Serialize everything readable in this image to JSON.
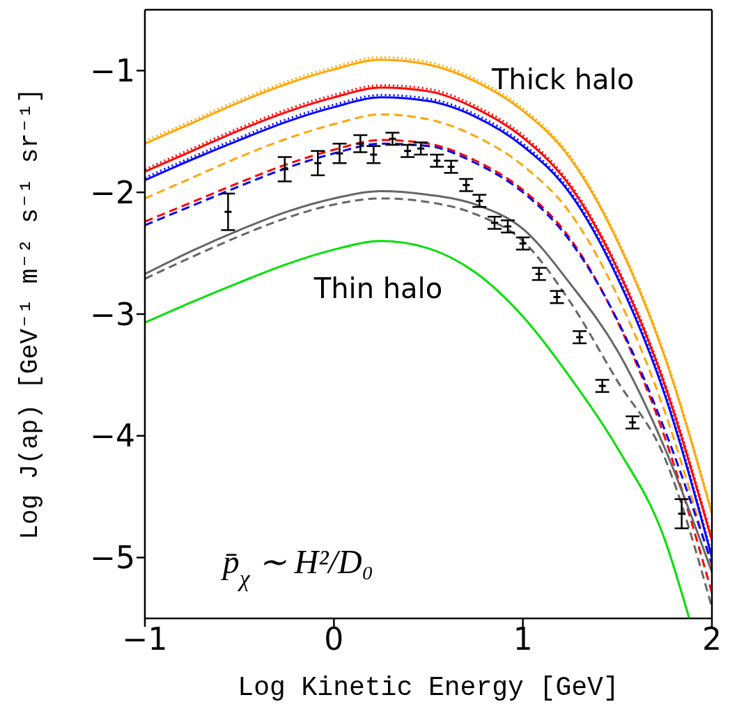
{
  "chart_data": {
    "type": "line",
    "xlabel": "Log Kinetic Energy [GeV]",
    "ylabel": "Log J(ap) [GeV⁻¹ m⁻² s⁻¹ sr⁻¹]",
    "x": [
      -1,
      -0.75,
      -0.5,
      -0.25,
      0,
      0.25,
      0.5,
      0.75,
      1,
      1.25,
      1.5,
      1.75,
      2
    ],
    "xlim": [
      -1,
      2
    ],
    "xticks": [
      {
        "value": -1,
        "label": "−1"
      },
      0,
      1,
      2
    ],
    "ylim": [
      -5.5,
      -0.5
    ],
    "yticks": [
      {
        "value": -1,
        "label": "−1"
      },
      {
        "value": -2,
        "label": "−2"
      },
      {
        "value": -3,
        "label": "−3"
      },
      {
        "value": -4,
        "label": "−4"
      },
      {
        "value": -5,
        "label": "−5"
      }
    ],
    "series": [
      {
        "color": "#ffa500",
        "line_style": "dotted",
        "values": [
          -1.58,
          -1.41,
          -1.24,
          -1.09,
          -0.97,
          -0.89,
          -0.93,
          -1.07,
          -1.31,
          -1.7,
          -2.38,
          -3.33,
          -4.62
        ]
      },
      {
        "color": "#ffa500",
        "line_style": "solid",
        "values": [
          -1.6,
          -1.43,
          -1.26,
          -1.11,
          -0.99,
          -0.91,
          -0.95,
          -1.09,
          -1.33,
          -1.72,
          -2.4,
          -3.35,
          -4.64
        ]
      },
      {
        "color": "#ff0000",
        "line_style": "dotted",
        "values": [
          -1.81,
          -1.64,
          -1.47,
          -1.32,
          -1.2,
          -1.12,
          -1.15,
          -1.29,
          -1.53,
          -1.93,
          -2.61,
          -3.56,
          -4.84
        ]
      },
      {
        "color": "#ff0000",
        "line_style": "solid",
        "values": [
          -1.83,
          -1.66,
          -1.49,
          -1.34,
          -1.22,
          -1.14,
          -1.17,
          -1.31,
          -1.55,
          -1.95,
          -2.63,
          -3.58,
          -4.86
        ]
      },
      {
        "color": "#0000ff",
        "line_style": "dotted",
        "values": [
          -1.88,
          -1.71,
          -1.55,
          -1.4,
          -1.28,
          -1.2,
          -1.23,
          -1.36,
          -1.6,
          -1.99,
          -2.68,
          -3.64,
          -4.98
        ]
      },
      {
        "color": "#0000ff",
        "line_style": "solid",
        "values": [
          -1.9,
          -1.73,
          -1.57,
          -1.42,
          -1.3,
          -1.22,
          -1.25,
          -1.38,
          -1.62,
          -2.01,
          -2.7,
          -3.66,
          -5.0
        ]
      },
      {
        "color": "#ffa500",
        "line_style": "dashed",
        "values": [
          -2.05,
          -1.88,
          -1.71,
          -1.56,
          -1.44,
          -1.36,
          -1.4,
          -1.54,
          -1.78,
          -2.17,
          -2.85,
          -3.8,
          -5.08
        ]
      },
      {
        "color": "#ff0000",
        "line_style": "dashed",
        "values": [
          -2.24,
          -2.08,
          -1.92,
          -1.77,
          -1.65,
          -1.57,
          -1.6,
          -1.74,
          -1.98,
          -2.38,
          -3.06,
          -4.01,
          -5.29
        ]
      },
      {
        "color": "#0000ff",
        "line_style": "dashed",
        "values": [
          -2.27,
          -2.11,
          -1.95,
          -1.8,
          -1.68,
          -1.6,
          -1.62,
          -1.76,
          -2.0,
          -2.4,
          -3.05,
          -3.95,
          -5.05
        ]
      },
      {
        "color": "#666666",
        "line_style": "solid",
        "values": [
          -2.67,
          -2.48,
          -2.31,
          -2.16,
          -2.05,
          -1.99,
          -2.02,
          -2.1,
          -2.3,
          -2.75,
          -3.3,
          -4.1,
          -5.12
        ]
      },
      {
        "color": "#666666",
        "line_style": "dashed",
        "values": [
          -2.71,
          -2.53,
          -2.36,
          -2.21,
          -2.1,
          -2.05,
          -2.08,
          -2.18,
          -2.4,
          -2.9,
          -3.55,
          -4.18,
          -5.41
        ]
      },
      {
        "color": "#00e000",
        "line_style": "solid",
        "x": [
          -1,
          -0.75,
          -0.5,
          -0.25,
          0,
          0.25,
          0.5,
          0.75,
          1,
          1.25,
          1.5,
          1.75,
          1.88
        ],
        "values": [
          -3.07,
          -2.9,
          -2.74,
          -2.59,
          -2.47,
          -2.4,
          -2.46,
          -2.66,
          -3.02,
          -3.52,
          -4.1,
          -4.85,
          -5.5
        ]
      },
      {
        "type": "scatter",
        "color": "#000000",
        "x": [
          -0.56,
          -0.26,
          -0.085,
          0.03,
          0.14,
          0.21,
          0.31,
          0.39,
          0.46,
          0.545,
          0.62,
          0.7,
          0.77,
          0.85,
          0.92,
          1.0,
          1.085,
          1.18,
          1.3,
          1.42,
          1.58,
          1.84
        ],
        "values": [
          -2.16,
          -1.81,
          -1.76,
          -1.68,
          -1.6,
          -1.69,
          -1.56,
          -1.66,
          -1.64,
          -1.74,
          -1.79,
          -1.94,
          -2.07,
          -2.25,
          -2.28,
          -2.42,
          -2.67,
          -2.86,
          -3.19,
          -3.59,
          -3.89,
          -4.64
        ],
        "errors": [
          0.15,
          0.1,
          0.1,
          0.08,
          0.07,
          0.07,
          0.05,
          0.05,
          0.05,
          0.05,
          0.05,
          0.05,
          0.05,
          0.05,
          0.05,
          0.05,
          0.05,
          0.05,
          0.05,
          0.05,
          0.05,
          0.12
        ]
      }
    ],
    "annotations": [
      "Thick halo",
      "Thin halo",
      "p̄$_{χ}$ ∼ H²/D₀"
    ]
  }
}
